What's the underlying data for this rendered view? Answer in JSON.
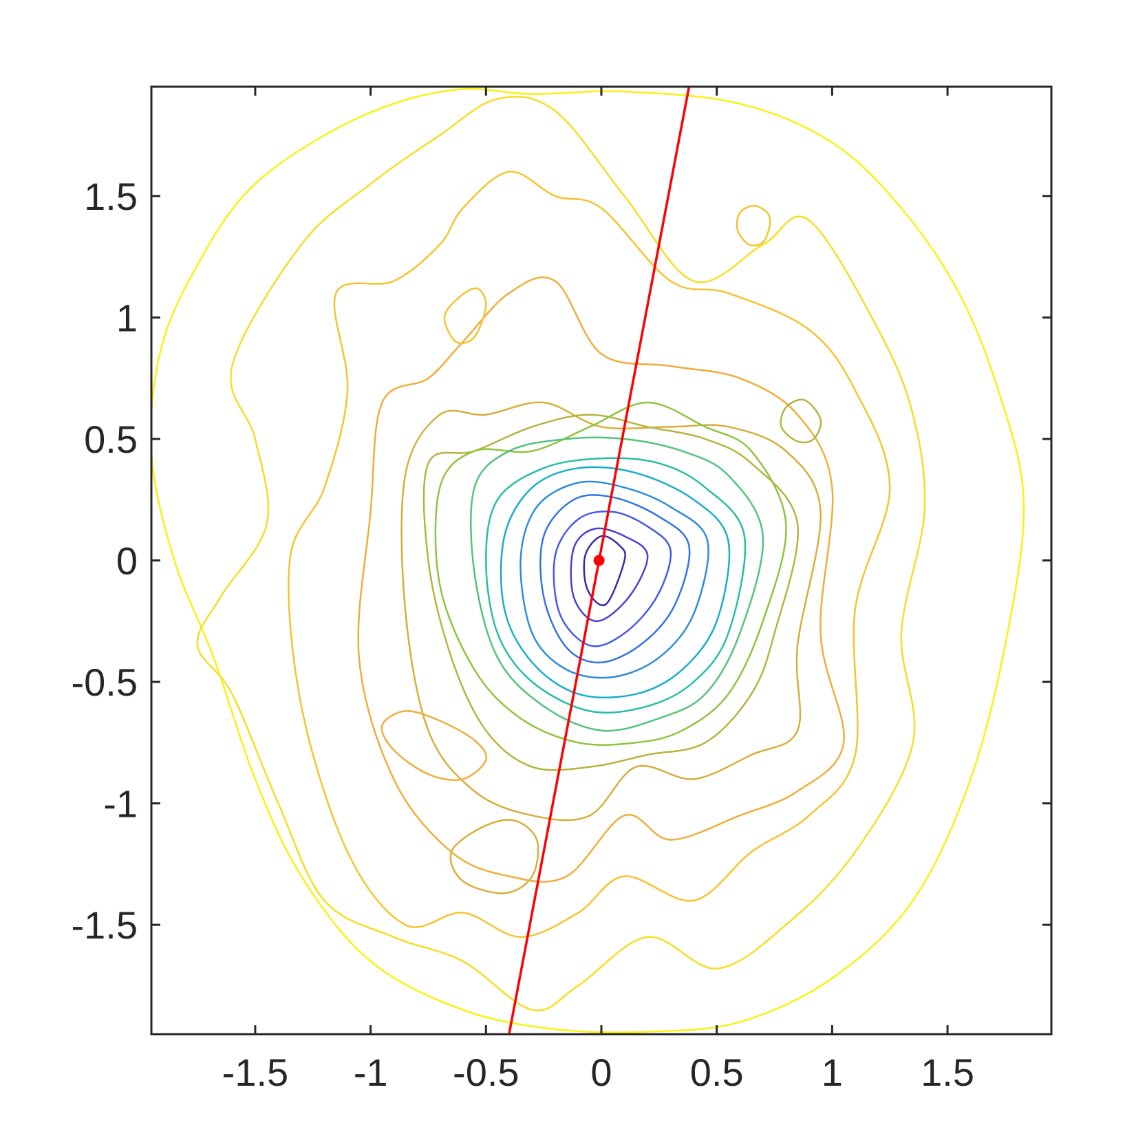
{
  "chart_data": {
    "type": "contour",
    "title": "",
    "xlabel": "",
    "ylabel": "",
    "xlim": [
      -1.95,
      1.95
    ],
    "ylim": [
      -1.95,
      1.95
    ],
    "xticks": [
      -1.5,
      -1,
      -0.5,
      0,
      0.5,
      1,
      1.5
    ],
    "yticks": [
      -1.5,
      -1,
      -0.5,
      0,
      0.5,
      1,
      1.5
    ],
    "xtick_labels": [
      "-1.5",
      "-1",
      "-0.5",
      "0",
      "0.5",
      "1",
      "1.5"
    ],
    "ytick_labels": [
      "-1.5",
      "-1",
      "-0.5",
      "0",
      "0.5",
      "1",
      "1.5"
    ],
    "grid": false,
    "legend": "none",
    "colormap": "parula",
    "colormap_range": [
      "#3d26a8",
      "#2d8cd9",
      "#1ebfae",
      "#8fc43d",
      "#f4b43a",
      "#f9f20f"
    ],
    "center_point": {
      "x": -0.01,
      "y": 0.0,
      "color": "#ff0000"
    },
    "fit_line": {
      "color": "#ff0000",
      "x1": -0.4,
      "y1": -1.95,
      "x2": 0.38,
      "y2": 1.95
    },
    "contour_levels": [
      {
        "level": 0.02,
        "color": "#f9f20f",
        "x": [
          1.83,
          1.76,
          1.6,
          1.35,
          1.0,
          0.6,
          0.2,
          -0.2,
          -0.6,
          -1.0,
          -1.3,
          -1.5,
          -1.68,
          -1.85,
          -1.95,
          -1.9,
          -1.7,
          -1.5,
          -1.2,
          -0.9,
          -0.6,
          -0.3,
          0.1,
          0.6,
          1.0,
          1.3,
          1.55,
          1.72,
          1.83
        ],
        "y": [
          0.25,
          -0.3,
          -0.9,
          -1.4,
          -1.72,
          -1.9,
          -1.94,
          -1.93,
          -1.85,
          -1.65,
          -1.3,
          -0.9,
          -0.4,
          0.0,
          0.45,
          0.9,
          1.3,
          1.55,
          1.75,
          1.88,
          1.94,
          1.92,
          1.93,
          1.88,
          1.72,
          1.45,
          1.1,
          0.7,
          0.25
        ]
      },
      {
        "level": 0.05,
        "color": "#f7dd22",
        "x": [
          1.4,
          1.3,
          1.35,
          1.1,
          0.8,
          0.5,
          0.2,
          -0.1,
          -0.3,
          -0.6,
          -0.9,
          -1.2,
          -1.4,
          -1.6,
          -1.75,
          -1.65,
          -1.45,
          -1.5,
          -1.6,
          -1.3,
          -1.0,
          -0.7,
          -0.45,
          -0.2,
          0.1,
          0.4,
          0.7,
          0.9,
          1.2,
          1.35,
          1.4
        ],
        "y": [
          0.2,
          -0.3,
          -0.75,
          -1.2,
          -1.5,
          -1.68,
          -1.55,
          -1.75,
          -1.85,
          -1.65,
          -1.55,
          -1.4,
          -1.0,
          -0.55,
          -0.35,
          -0.15,
          0.15,
          0.5,
          0.8,
          1.3,
          1.55,
          1.75,
          1.9,
          1.85,
          1.5,
          1.15,
          1.3,
          1.4,
          0.95,
          0.6,
          0.2
        ]
      },
      {
        "level": 0.09,
        "color": "#f6c32e",
        "x": [
          1.25,
          1.1,
          1.1,
          0.9,
          0.65,
          0.4,
          0.1,
          -0.1,
          -0.35,
          -0.6,
          -0.85,
          -1.1,
          -1.3,
          -1.35,
          -1.2,
          -1.1,
          -1.15,
          -0.9,
          -0.7,
          -0.6,
          -0.4,
          -0.2,
          0.0,
          0.3,
          0.55,
          0.9,
          1.1,
          1.25
        ],
        "y": [
          0.3,
          -0.2,
          -0.8,
          -1.05,
          -1.2,
          -1.4,
          -1.3,
          -1.45,
          -1.55,
          -1.45,
          -1.5,
          -1.2,
          -0.6,
          0.0,
          0.3,
          0.7,
          1.1,
          1.15,
          1.3,
          1.45,
          1.6,
          1.5,
          1.45,
          1.15,
          1.1,
          0.95,
          0.7,
          0.3
        ]
      },
      {
        "level": 0.14,
        "color": "#f1ad3a",
        "x": [
          1.0,
          0.95,
          1.05,
          0.85,
          0.6,
          0.3,
          0.1,
          -0.15,
          -0.4,
          -0.65,
          -0.9,
          -1.05,
          -1.0,
          -0.95,
          -0.75,
          -0.6,
          -0.4,
          -0.2,
          0.0,
          0.3,
          0.6,
          0.85,
          1.0
        ],
        "y": [
          0.3,
          -0.3,
          -0.75,
          -0.95,
          -1.05,
          -1.15,
          -1.05,
          -1.3,
          -1.3,
          -1.2,
          -0.9,
          -0.4,
          0.2,
          0.65,
          0.75,
          0.9,
          1.1,
          1.15,
          0.85,
          0.8,
          0.75,
          0.6,
          0.3
        ]
      },
      {
        "level": 0.2,
        "color": "#d7ae3a",
        "x": [
          0.95,
          0.85,
          0.85,
          0.65,
          0.4,
          0.15,
          -0.05,
          -0.3,
          -0.55,
          -0.75,
          -0.85,
          -0.85,
          -0.7,
          -0.5,
          -0.25,
          0.0,
          0.3,
          0.55,
          0.8,
          0.95
        ],
        "y": [
          0.2,
          -0.35,
          -0.7,
          -0.8,
          -0.9,
          -0.85,
          -1.05,
          -1.05,
          -0.95,
          -0.7,
          -0.2,
          0.35,
          0.6,
          0.6,
          0.65,
          0.55,
          0.55,
          0.55,
          0.45,
          0.2
        ]
      },
      {
        "level": 0.27,
        "color": "#b7b33f",
        "x": [
          0.85,
          0.75,
          0.65,
          0.45,
          0.2,
          -0.05,
          -0.3,
          -0.5,
          -0.65,
          -0.75,
          -0.75,
          -0.55,
          -0.3,
          -0.05,
          0.2,
          0.45,
          0.65,
          0.85
        ],
        "y": [
          0.15,
          -0.3,
          -0.55,
          -0.75,
          -0.8,
          -0.85,
          -0.85,
          -0.7,
          -0.4,
          0.0,
          0.4,
          0.45,
          0.55,
          0.6,
          0.55,
          0.5,
          0.4,
          0.15
        ]
      },
      {
        "level": 0.36,
        "color": "#8fc43d",
        "x": [
          0.8,
          0.7,
          0.55,
          0.35,
          0.15,
          -0.1,
          -0.35,
          -0.55,
          -0.7,
          -0.7,
          -0.55,
          -0.3,
          -0.05,
          0.2,
          0.45,
          0.65,
          0.8
        ],
        "y": [
          0.15,
          -0.25,
          -0.55,
          -0.7,
          -0.75,
          -0.75,
          -0.65,
          -0.45,
          -0.1,
          0.3,
          0.45,
          0.45,
          0.55,
          0.65,
          0.55,
          0.45,
          0.15
        ]
      },
      {
        "level": 0.46,
        "color": "#52c27b",
        "x": [
          0.7,
          0.6,
          0.45,
          0.25,
          0.0,
          -0.25,
          -0.45,
          -0.55,
          -0.55,
          -0.4,
          -0.15,
          0.1,
          0.35,
          0.55,
          0.7
        ],
        "y": [
          0.1,
          -0.3,
          -0.55,
          -0.65,
          -0.7,
          -0.6,
          -0.4,
          -0.05,
          0.3,
          0.45,
          0.5,
          0.5,
          0.45,
          0.35,
          0.1
        ]
      },
      {
        "level": 0.58,
        "color": "#24bfa3",
        "x": [
          0.62,
          0.55,
          0.4,
          0.2,
          -0.05,
          -0.3,
          -0.45,
          -0.5,
          -0.45,
          -0.25,
          0.0,
          0.25,
          0.45,
          0.62
        ],
        "y": [
          0.1,
          -0.3,
          -0.5,
          -0.6,
          -0.62,
          -0.5,
          -0.3,
          0.0,
          0.25,
          0.38,
          0.42,
          0.4,
          0.3,
          0.1
        ]
      },
      {
        "level": 0.72,
        "color": "#16aec8",
        "x": [
          0.55,
          0.5,
          0.35,
          0.15,
          -0.1,
          -0.3,
          -0.42,
          -0.42,
          -0.3,
          -0.1,
          0.15,
          0.4,
          0.55
        ],
        "y": [
          0.08,
          -0.25,
          -0.45,
          -0.55,
          -0.55,
          -0.42,
          -0.2,
          0.1,
          0.3,
          0.38,
          0.36,
          0.25,
          0.08
        ]
      },
      {
        "level": 0.88,
        "color": "#2d8cd9",
        "x": [
          0.46,
          0.4,
          0.25,
          0.05,
          -0.15,
          -0.3,
          -0.35,
          -0.28,
          -0.1,
          0.1,
          0.3,
          0.46
        ],
        "y": [
          0.08,
          -0.22,
          -0.4,
          -0.48,
          -0.45,
          -0.3,
          0.0,
          0.22,
          0.32,
          0.3,
          0.22,
          0.08
        ]
      },
      {
        "level": 1.05,
        "color": "#3173e4",
        "x": [
          0.38,
          0.32,
          0.18,
          0.0,
          -0.15,
          -0.25,
          -0.25,
          -0.12,
          0.05,
          0.25,
          0.38
        ],
        "y": [
          0.06,
          -0.18,
          -0.34,
          -0.42,
          -0.36,
          -0.15,
          0.1,
          0.25,
          0.26,
          0.18,
          0.06
        ]
      },
      {
        "level": 1.25,
        "color": "#4458ed",
        "x": [
          0.3,
          0.24,
          0.1,
          -0.05,
          -0.18,
          -0.2,
          -0.1,
          0.05,
          0.2,
          0.3
        ],
        "y": [
          0.04,
          -0.15,
          -0.3,
          -0.35,
          -0.22,
          0.02,
          0.17,
          0.2,
          0.14,
          0.04
        ]
      },
      {
        "level": 1.48,
        "color": "#4a40d0",
        "x": [
          0.2,
          0.12,
          -0.02,
          -0.12,
          -0.12,
          -0.03,
          0.1,
          0.2
        ],
        "y": [
          0.02,
          -0.15,
          -0.25,
          -0.15,
          0.05,
          0.13,
          0.1,
          0.02
        ]
      },
      {
        "level": 1.75,
        "color": "#3d26a8",
        "x": [
          0.1,
          0.02,
          -0.06,
          -0.07,
          0.0,
          0.08,
          0.1
        ],
        "y": [
          0.0,
          -0.18,
          -0.12,
          0.02,
          0.1,
          0.06,
          0.0
        ]
      },
      {
        "level": 0.27,
        "color": "#b7b33f",
        "x": [
          0.95,
          0.92,
          0.85,
          0.78,
          0.8,
          0.88,
          0.95
        ],
        "y": [
          0.58,
          0.5,
          0.49,
          0.55,
          0.63,
          0.66,
          0.58
        ]
      },
      {
        "level": 0.09,
        "color": "#f6c32e",
        "x": [
          0.73,
          0.7,
          0.64,
          0.59,
          0.6,
          0.66,
          0.72,
          0.73
        ],
        "y": [
          1.38,
          1.31,
          1.3,
          1.36,
          1.43,
          1.46,
          1.43,
          1.38
        ]
      },
      {
        "level": 0.09,
        "color": "#f6c32e",
        "x": [
          -0.5,
          -0.55,
          -0.63,
          -0.68,
          -0.62,
          -0.54,
          -0.5
        ],
        "y": [
          1.05,
          0.92,
          0.9,
          1.0,
          1.08,
          1.12,
          1.05
        ]
      },
      {
        "level": 0.2,
        "color": "#d7ae3a",
        "x": [
          -0.28,
          -0.3,
          -0.42,
          -0.6,
          -0.65,
          -0.52,
          -0.38,
          -0.28
        ],
        "y": [
          -1.15,
          -1.3,
          -1.37,
          -1.32,
          -1.2,
          -1.1,
          -1.07,
          -1.15
        ]
      },
      {
        "level": 0.14,
        "color": "#f1ad3a",
        "x": [
          -0.5,
          -0.6,
          -0.75,
          -0.9,
          -0.95,
          -0.85,
          -0.7,
          -0.55,
          -0.5
        ],
        "y": [
          -0.82,
          -0.9,
          -0.88,
          -0.78,
          -0.68,
          -0.62,
          -0.66,
          -0.74,
          -0.82
        ]
      }
    ]
  }
}
